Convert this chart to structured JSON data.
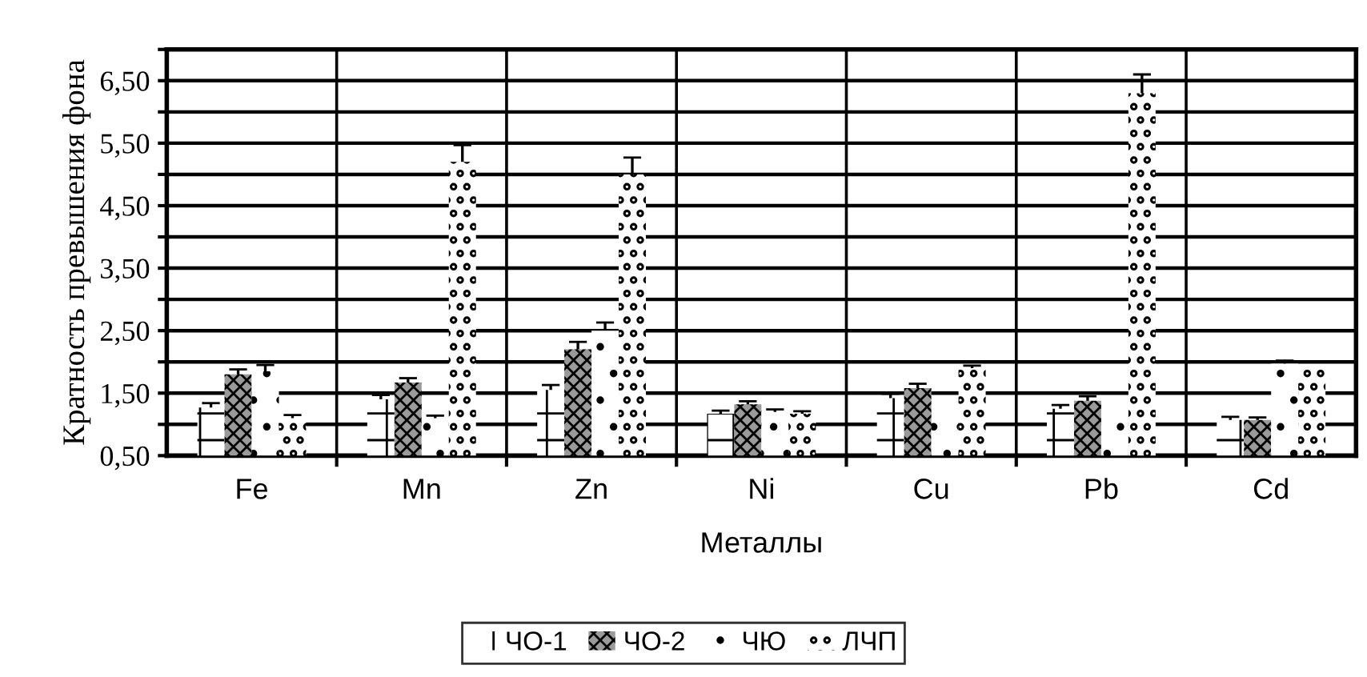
{
  "chart_data": {
    "type": "bar",
    "xlabel": "Металлы",
    "ylabel": "Кратность превышения фона",
    "categories": [
      "Fe",
      "Mn",
      "Zn",
      "Ni",
      "Cu",
      "Pb",
      "Cd"
    ],
    "series": [
      {
        "name": "ЧО-1",
        "color": "#ffffff",
        "values": [
          1.27,
          1.4,
          1.55,
          1.17,
          1.42,
          1.25,
          1.07
        ],
        "errors": [
          0.07,
          0.07,
          0.08,
          0.05,
          0.07,
          0.06,
          0.05
        ]
      },
      {
        "name": "ЧО-2",
        "color": "#9a9a9a",
        "values": [
          1.8,
          1.67,
          2.2,
          1.32,
          1.58,
          1.38,
          1.07
        ],
        "errors": [
          0.08,
          0.07,
          0.12,
          0.05,
          0.07,
          0.07,
          0.04
        ]
      },
      {
        "name": "ЧЮ",
        "color": "#ffffff",
        "values": [
          1.85,
          1.1,
          2.5,
          1.2,
          1.03,
          1.03,
          1.97
        ],
        "errors": [
          0.1,
          0.04,
          0.13,
          0.04,
          null,
          null,
          0.05
        ]
      },
      {
        "name": "ЛЧП",
        "color": "#ffffff",
        "values": [
          1.1,
          5.2,
          5.0,
          1.17,
          1.9,
          6.3,
          1.93
        ],
        "errors": [
          0.05,
          0.27,
          0.27,
          0.04,
          0.04,
          0.3,
          null
        ]
      }
    ],
    "ylim": [
      0.5,
      7.0
    ],
    "yticks": [
      {
        "value": 0.5,
        "label": "0,50"
      },
      {
        "value": 1.0,
        "label": null
      },
      {
        "value": 1.5,
        "label": "1,50"
      },
      {
        "value": 2.0,
        "label": null
      },
      {
        "value": 2.5,
        "label": "2,50"
      },
      {
        "value": 3.0,
        "label": null
      },
      {
        "value": 3.5,
        "label": "3,50"
      },
      {
        "value": 4.0,
        "label": null
      },
      {
        "value": 4.5,
        "label": "4,50"
      },
      {
        "value": 5.0,
        "label": null
      },
      {
        "value": 5.5,
        "label": "5,50"
      },
      {
        "value": 6.0,
        "label": null
      },
      {
        "value": 6.5,
        "label": "6,50"
      },
      {
        "value": 7.0,
        "label": null
      }
    ],
    "grid": true,
    "legend": "bottom"
  }
}
